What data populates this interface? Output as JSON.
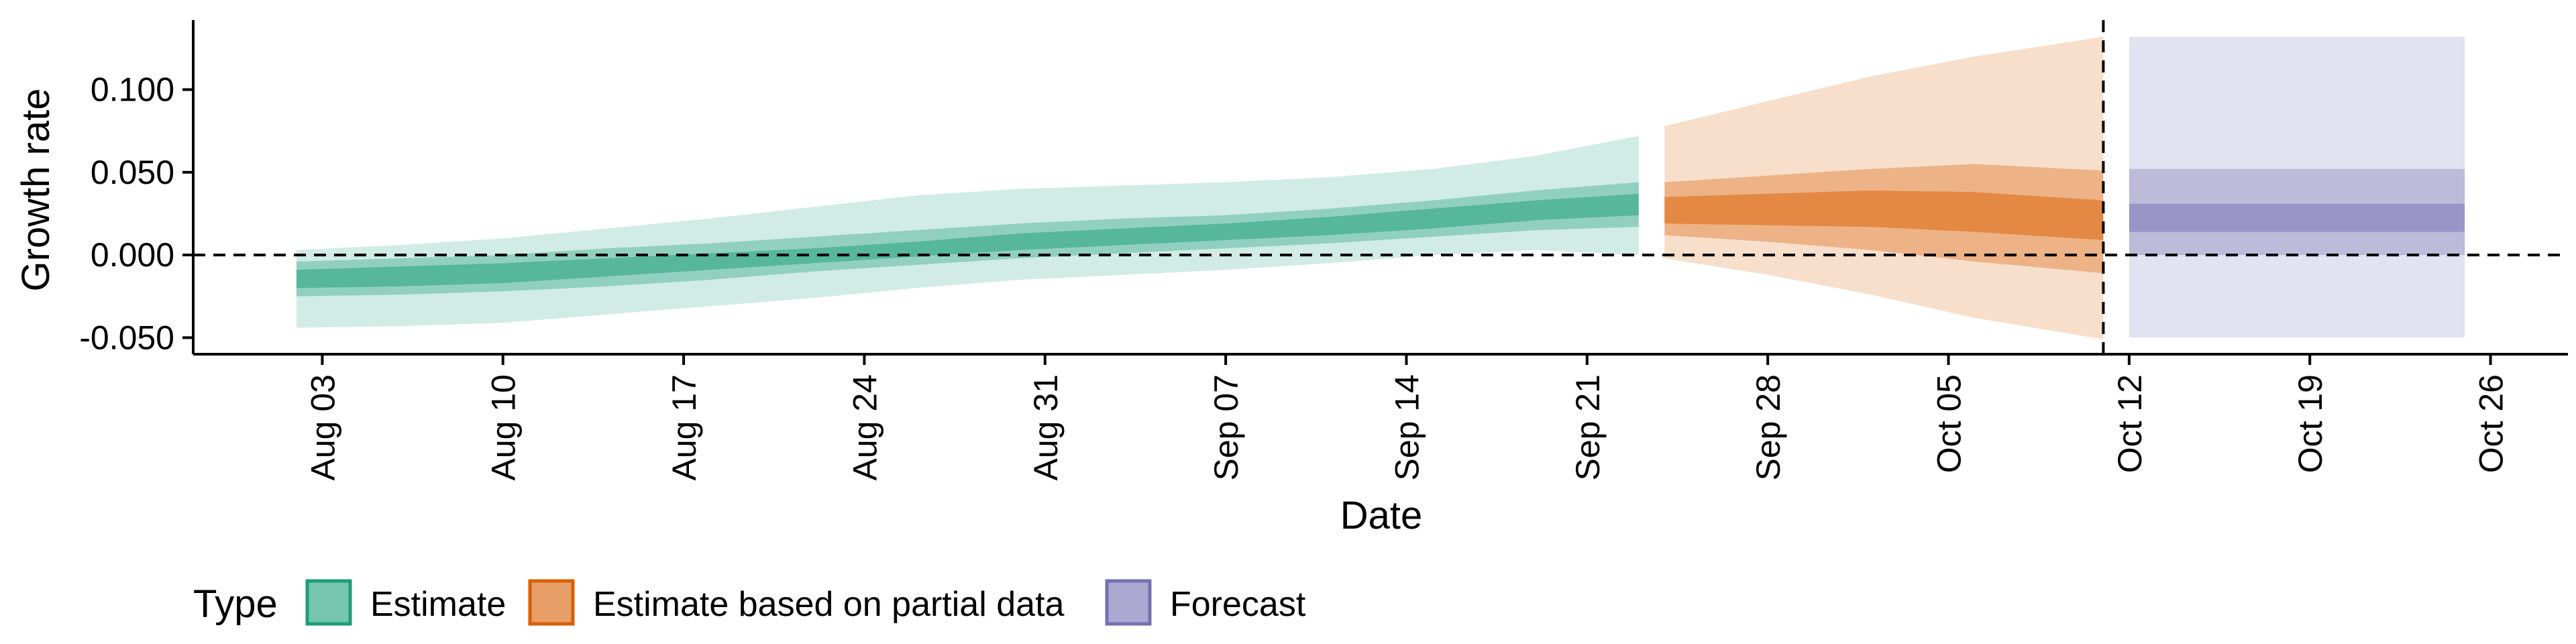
{
  "chart_data": {
    "type": "area",
    "xlabel": "Date",
    "ylabel": "Growth rate",
    "x_ticks": [
      "Aug 03",
      "Aug 10",
      "Aug 17",
      "Aug 24",
      "Aug 31",
      "Sep 07",
      "Sep 14",
      "Sep 21",
      "Sep 28",
      "Oct 05",
      "Oct 12",
      "Oct 19",
      "Oct 26"
    ],
    "x_tick_dates": [
      "2020-08-03",
      "2020-08-10",
      "2020-08-17",
      "2020-08-24",
      "2020-08-31",
      "2020-09-07",
      "2020-09-14",
      "2020-09-21",
      "2020-09-28",
      "2020-10-05",
      "2020-10-12",
      "2020-10-19",
      "2020-10-26"
    ],
    "y_ticks": [
      "-0.050",
      "0.000",
      "0.050",
      "0.100"
    ],
    "y_tick_values": [
      -0.05,
      0.0,
      0.05,
      0.1
    ],
    "xlim": [
      "2020-07-29",
      "2020-10-29"
    ],
    "ylim": [
      -0.06,
      0.142
    ],
    "grid": false,
    "legend": {
      "position": "bottom-left",
      "title": "Type",
      "entries": [
        "Estimate",
        "Estimate based on partial data",
        "Forecast"
      ]
    },
    "reference_lines": {
      "horizontal_dashed_y": 0.0,
      "vertical_dashed_x": "2020-10-11"
    },
    "colors": {
      "Estimate": "#1b9e77",
      "Estimate based on partial data": "#d95f02",
      "Forecast": "#7570b3"
    },
    "series": [
      {
        "name": "Estimate",
        "x": [
          "2020-08-02",
          "2020-08-06",
          "2020-08-10",
          "2020-08-14",
          "2020-08-18",
          "2020-08-22",
          "2020-08-26",
          "2020-08-30",
          "2020-09-03",
          "2020-09-07",
          "2020-09-11",
          "2020-09-15",
          "2020-09-19",
          "2020-09-23"
        ],
        "median": [
          -0.015,
          -0.013,
          -0.011,
          -0.008,
          -0.005,
          -0.001,
          0.003,
          0.008,
          0.011,
          0.014,
          0.018,
          0.022,
          0.027,
          0.031
        ],
        "lower_20": [
          -0.02,
          -0.019,
          -0.017,
          -0.013,
          -0.009,
          -0.005,
          -0.001,
          0.003,
          0.006,
          0.009,
          0.012,
          0.016,
          0.021,
          0.024
        ],
        "upper_20": [
          -0.009,
          -0.007,
          -0.005,
          -0.002,
          0.001,
          0.004,
          0.008,
          0.013,
          0.016,
          0.019,
          0.023,
          0.028,
          0.033,
          0.037
        ],
        "lower_50": [
          -0.025,
          -0.024,
          -0.022,
          -0.019,
          -0.015,
          -0.01,
          -0.006,
          -0.002,
          0.001,
          0.004,
          0.007,
          0.011,
          0.015,
          0.017
        ],
        "upper_50": [
          -0.004,
          -0.002,
          0.0,
          0.004,
          0.007,
          0.011,
          0.015,
          0.019,
          0.022,
          0.024,
          0.028,
          0.033,
          0.039,
          0.044
        ],
        "lower_90": [
          -0.044,
          -0.043,
          -0.041,
          -0.036,
          -0.031,
          -0.026,
          -0.02,
          -0.015,
          -0.012,
          -0.009,
          -0.005,
          0.0,
          0.003,
          0.0
        ],
        "upper_90": [
          0.003,
          0.006,
          0.01,
          0.016,
          0.022,
          0.029,
          0.036,
          0.04,
          0.042,
          0.044,
          0.047,
          0.052,
          0.06,
          0.072
        ]
      },
      {
        "name": "Estimate based on partial data",
        "x": [
          "2020-09-24",
          "2020-09-28",
          "2020-10-02",
          "2020-10-06",
          "2020-10-11"
        ],
        "median": [
          0.027,
          0.028,
          0.028,
          0.026,
          0.021
        ],
        "lower_20": [
          0.019,
          0.018,
          0.017,
          0.014,
          0.009
        ],
        "upper_20": [
          0.035,
          0.037,
          0.039,
          0.038,
          0.033
        ],
        "lower_50": [
          0.012,
          0.008,
          0.003,
          -0.004,
          -0.011
        ],
        "upper_50": [
          0.044,
          0.048,
          0.052,
          0.055,
          0.051
        ],
        "lower_90": [
          -0.002,
          -0.012,
          -0.024,
          -0.038,
          -0.051
        ],
        "upper_90": [
          0.078,
          0.093,
          0.108,
          0.12,
          0.132
        ]
      },
      {
        "name": "Forecast",
        "x": [
          "2020-10-12",
          "2020-10-25"
        ],
        "median": [
          0.031,
          0.031
        ],
        "lower_20": [
          0.014,
          0.014
        ],
        "upper_20": [
          0.031,
          0.031
        ],
        "lower_50": [
          0.0,
          0.0
        ],
        "upper_50": [
          0.052,
          0.052
        ],
        "lower_90": [
          -0.05,
          -0.05
        ],
        "upper_90": [
          0.132,
          0.132
        ]
      }
    ]
  }
}
